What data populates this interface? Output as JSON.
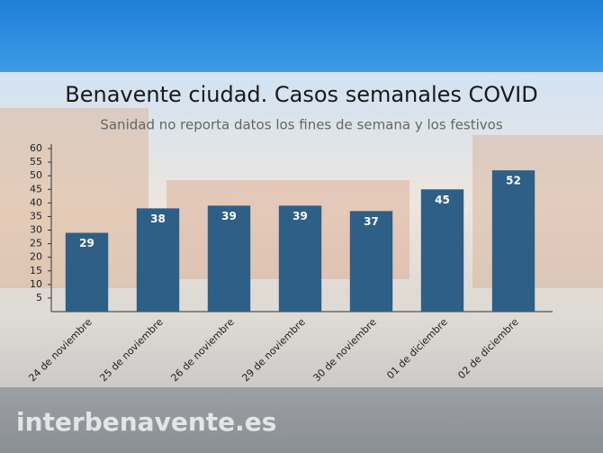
{
  "chart_data": {
    "type": "bar",
    "title": "Benavente ciudad. Casos semanales COVID",
    "subtitle": "Sanidad no reporta datos los fines de semana y los festivos",
    "categories": [
      "24 de noviembre",
      "25 de noviembre",
      "26 de noviembre",
      "29 de noviembre",
      "30 de noviembre",
      "01 de diciembre",
      "02 de diciembre"
    ],
    "values": [
      29,
      38,
      39,
      39,
      37,
      45,
      52
    ],
    "color": "#2e5f86",
    "ylim": [
      0,
      60
    ],
    "yticks": [
      5,
      10,
      15,
      20,
      25,
      30,
      35,
      40,
      45,
      50,
      55,
      60
    ],
    "grid": false
  },
  "watermark": "interbenavente.es"
}
